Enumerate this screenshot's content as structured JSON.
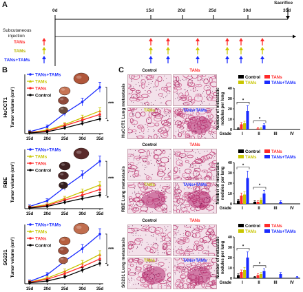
{
  "panel_a": {
    "letter": "A",
    "timepoints": [
      "0d",
      "15d",
      "20d",
      "25d",
      "30d",
      "35d"
    ],
    "sacrifice": "Sacrifice",
    "injection_line1": "Subcutaneous",
    "injection_line2": "injection",
    "groups": [
      {
        "name": "TANs",
        "color": "#ff2a2a"
      },
      {
        "name": "TAMs",
        "color": "#c9c600"
      },
      {
        "name": "TANs+TAMs",
        "color": "#1a2bff"
      }
    ]
  },
  "panel_b": {
    "letter": "B",
    "legend": [
      "TANs+TAMs",
      "TAMs",
      "TANs",
      "Control"
    ],
    "xlabels": [
      "15d",
      "20d",
      "25d",
      "30d",
      "35d"
    ],
    "ylabel": "Tumor volume (cm³)",
    "rows": [
      {
        "cell": "HuCCT1",
        "sig_top": "***",
        "sig_bottom": "*"
      },
      {
        "cell": "RBE",
        "sig_top": "***",
        "sig_bottom": "*"
      },
      {
        "cell": "SG231",
        "sig_top": "***",
        "sig_bottom": "*"
      }
    ]
  },
  "panel_c": {
    "letter": "C",
    "img_labels": [
      "Control",
      "TANs",
      "TAMs",
      "TANs+TAMs"
    ],
    "side_labels": [
      "HuCCT1 Lung metastasis",
      "RBE Lung metastasis",
      "SG231 Lung metastasis"
    ],
    "legend": [
      "Control",
      "TANs",
      "TAMs",
      "TANs+TAMs"
    ],
    "ylabel_line1": "Number of metastatic",
    "ylabel_line2": "nodules per lung",
    "grade_label": "Grade",
    "grades": [
      "I",
      "II",
      "III",
      "IV"
    ]
  },
  "colors": {
    "control": "#000000",
    "tans": "#ff2a2a",
    "tams": "#c9c600",
    "combo": "#1a2bff"
  },
  "chart_data": [
    {
      "type": "line",
      "title": "HuCCT1",
      "x": [
        "15d",
        "20d",
        "25d",
        "30d",
        "35d"
      ],
      "ylabel": "Tumor volume (cm³)",
      "series": [
        {
          "name": "TANs+TAMs",
          "values": [
            0.08,
            0.3,
            0.9,
            1.4,
            2.05
          ]
        },
        {
          "name": "TAMs",
          "values": [
            0.05,
            0.15,
            0.4,
            0.7,
            1.0
          ]
        },
        {
          "name": "TANs",
          "values": [
            0.04,
            0.12,
            0.35,
            0.6,
            0.85
          ]
        },
        {
          "name": "Control",
          "values": [
            0.03,
            0.08,
            0.25,
            0.45,
            0.65
          ]
        }
      ]
    },
    {
      "type": "line",
      "title": "RBE",
      "x": [
        "15d",
        "20d",
        "25d",
        "30d",
        "35d"
      ],
      "ylabel": "Tumor volume (cm³)",
      "series": [
        {
          "name": "TANs+TAMs",
          "values": [
            0.1,
            0.35,
            0.95,
            1.5,
            2.1
          ]
        },
        {
          "name": "TAMs",
          "values": [
            0.06,
            0.18,
            0.45,
            0.75,
            1.05
          ]
        },
        {
          "name": "TANs",
          "values": [
            0.05,
            0.14,
            0.38,
            0.6,
            0.85
          ]
        },
        {
          "name": "Control",
          "values": [
            0.03,
            0.1,
            0.28,
            0.45,
            0.6
          ]
        }
      ]
    },
    {
      "type": "line",
      "title": "SG231",
      "x": [
        "15d",
        "20d",
        "25d",
        "30d",
        "35d"
      ],
      "ylabel": "Tumor volume (cm³)",
      "series": [
        {
          "name": "TANs+TAMs",
          "values": [
            0.1,
            0.4,
            1.0,
            1.55,
            2.2
          ]
        },
        {
          "name": "TAMs",
          "values": [
            0.07,
            0.25,
            0.55,
            0.9,
            1.3
          ]
        },
        {
          "name": "TANs",
          "values": [
            0.06,
            0.2,
            0.45,
            0.75,
            1.1
          ]
        },
        {
          "name": "Control",
          "values": [
            0.04,
            0.12,
            0.3,
            0.6,
            0.9
          ]
        }
      ]
    },
    {
      "type": "bar",
      "title": "HuCCT1",
      "categories": [
        "I",
        "II",
        "III",
        "IV"
      ],
      "ylim": [
        0,
        40
      ],
      "series": [
        {
          "name": "Control",
          "values": [
            1,
            0,
            0,
            0
          ]
        },
        {
          "name": "TANs",
          "values": [
            5,
            1,
            0,
            0
          ]
        },
        {
          "name": "TAMs",
          "values": [
            6,
            1,
            0,
            0
          ]
        },
        {
          "name": "TANs+TAMs",
          "values": [
            18,
            4,
            0,
            0
          ]
        }
      ]
    },
    {
      "type": "bar",
      "title": "RBE",
      "categories": [
        "I",
        "II",
        "III",
        "IV"
      ],
      "ylim": [
        0,
        40
      ],
      "series": [
        {
          "name": "Control",
          "values": [
            3,
            2,
            0,
            0
          ]
        },
        {
          "name": "TANs",
          "values": [
            8,
            2,
            0,
            0
          ]
        },
        {
          "name": "TAMs",
          "values": [
            9,
            4,
            0,
            0
          ]
        },
        {
          "name": "TANs+TAMs",
          "values": [
            25,
            10,
            2,
            0
          ]
        }
      ]
    },
    {
      "type": "bar",
      "title": "SG231",
      "categories": [
        "I",
        "II",
        "III",
        "IV"
      ],
      "ylim": [
        0,
        40
      ],
      "series": [
        {
          "name": "Control",
          "values": [
            3,
            1,
            0,
            0
          ]
        },
        {
          "name": "TANs",
          "values": [
            6,
            3,
            0,
            0
          ]
        },
        {
          "name": "TAMs",
          "values": [
            8,
            4,
            0,
            0
          ]
        },
        {
          "name": "TANs+TAMs",
          "values": [
            20,
            7,
            4,
            1
          ]
        }
      ]
    }
  ]
}
